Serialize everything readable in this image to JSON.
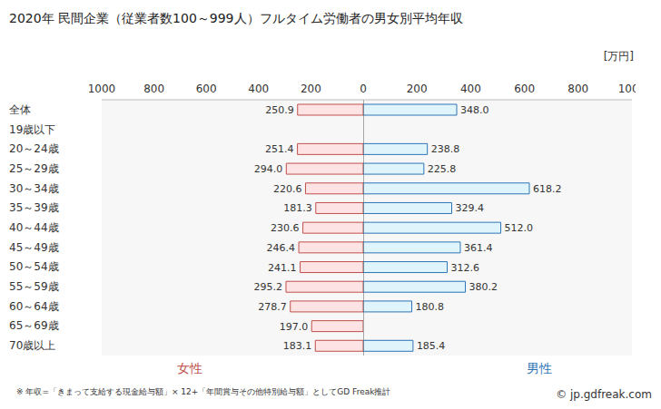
{
  "chart_data": {
    "type": "bar",
    "title": "2020年 民間企業（従業者数100～999人）フルタイム労働者の男女別平均年収",
    "x_label": "[万円]",
    "footnote": "※ 年収=「きまって支給する現金給与額」× 12+「年間賞与その他特別給与額」としてGD Freak推計",
    "source": "© jp.gdfreak.com",
    "orientation": "horizontal",
    "data_labels": true,
    "grid": false,
    "legend": "bottom",
    "categories": [
      "全体",
      "19歳以下",
      "20～24歳",
      "25～29歳",
      "30～34歳",
      "35～39歳",
      "40～44歳",
      "45～49歳",
      "50～54歳",
      "55～59歳",
      "60～64歳",
      "65～69歳",
      "70歳以上"
    ],
    "xlim": [
      0,
      1000
    ],
    "xticks": [
      0,
      200,
      400,
      600,
      800,
      1000
    ],
    "series": [
      {
        "name": "女性",
        "color": "#c0504d",
        "values": [
          250.9,
          null,
          251.4,
          294.0,
          220.6,
          181.3,
          230.6,
          246.4,
          241.1,
          295.2,
          278.7,
          197.0,
          183.1
        ],
        "value_labels": [
          "250.9",
          null,
          "251.4",
          "294.0",
          "220.6",
          "181.3",
          "230.6",
          "246.4",
          "241.1",
          "295.2",
          "278.7",
          "197.0",
          "183.1"
        ]
      },
      {
        "name": "男性",
        "color": "#2e75b6",
        "values": [
          348.0,
          null,
          238.8,
          225.8,
          618.2,
          329.4,
          512.0,
          361.4,
          312.6,
          380.2,
          180.8,
          null,
          185.4
        ],
        "value_labels": [
          "348.0",
          null,
          "238.8",
          "225.8",
          "618.2",
          "329.4",
          "512.0",
          "361.4",
          "312.6",
          "380.2",
          "180.8",
          null,
          "185.4"
        ]
      }
    ]
  }
}
